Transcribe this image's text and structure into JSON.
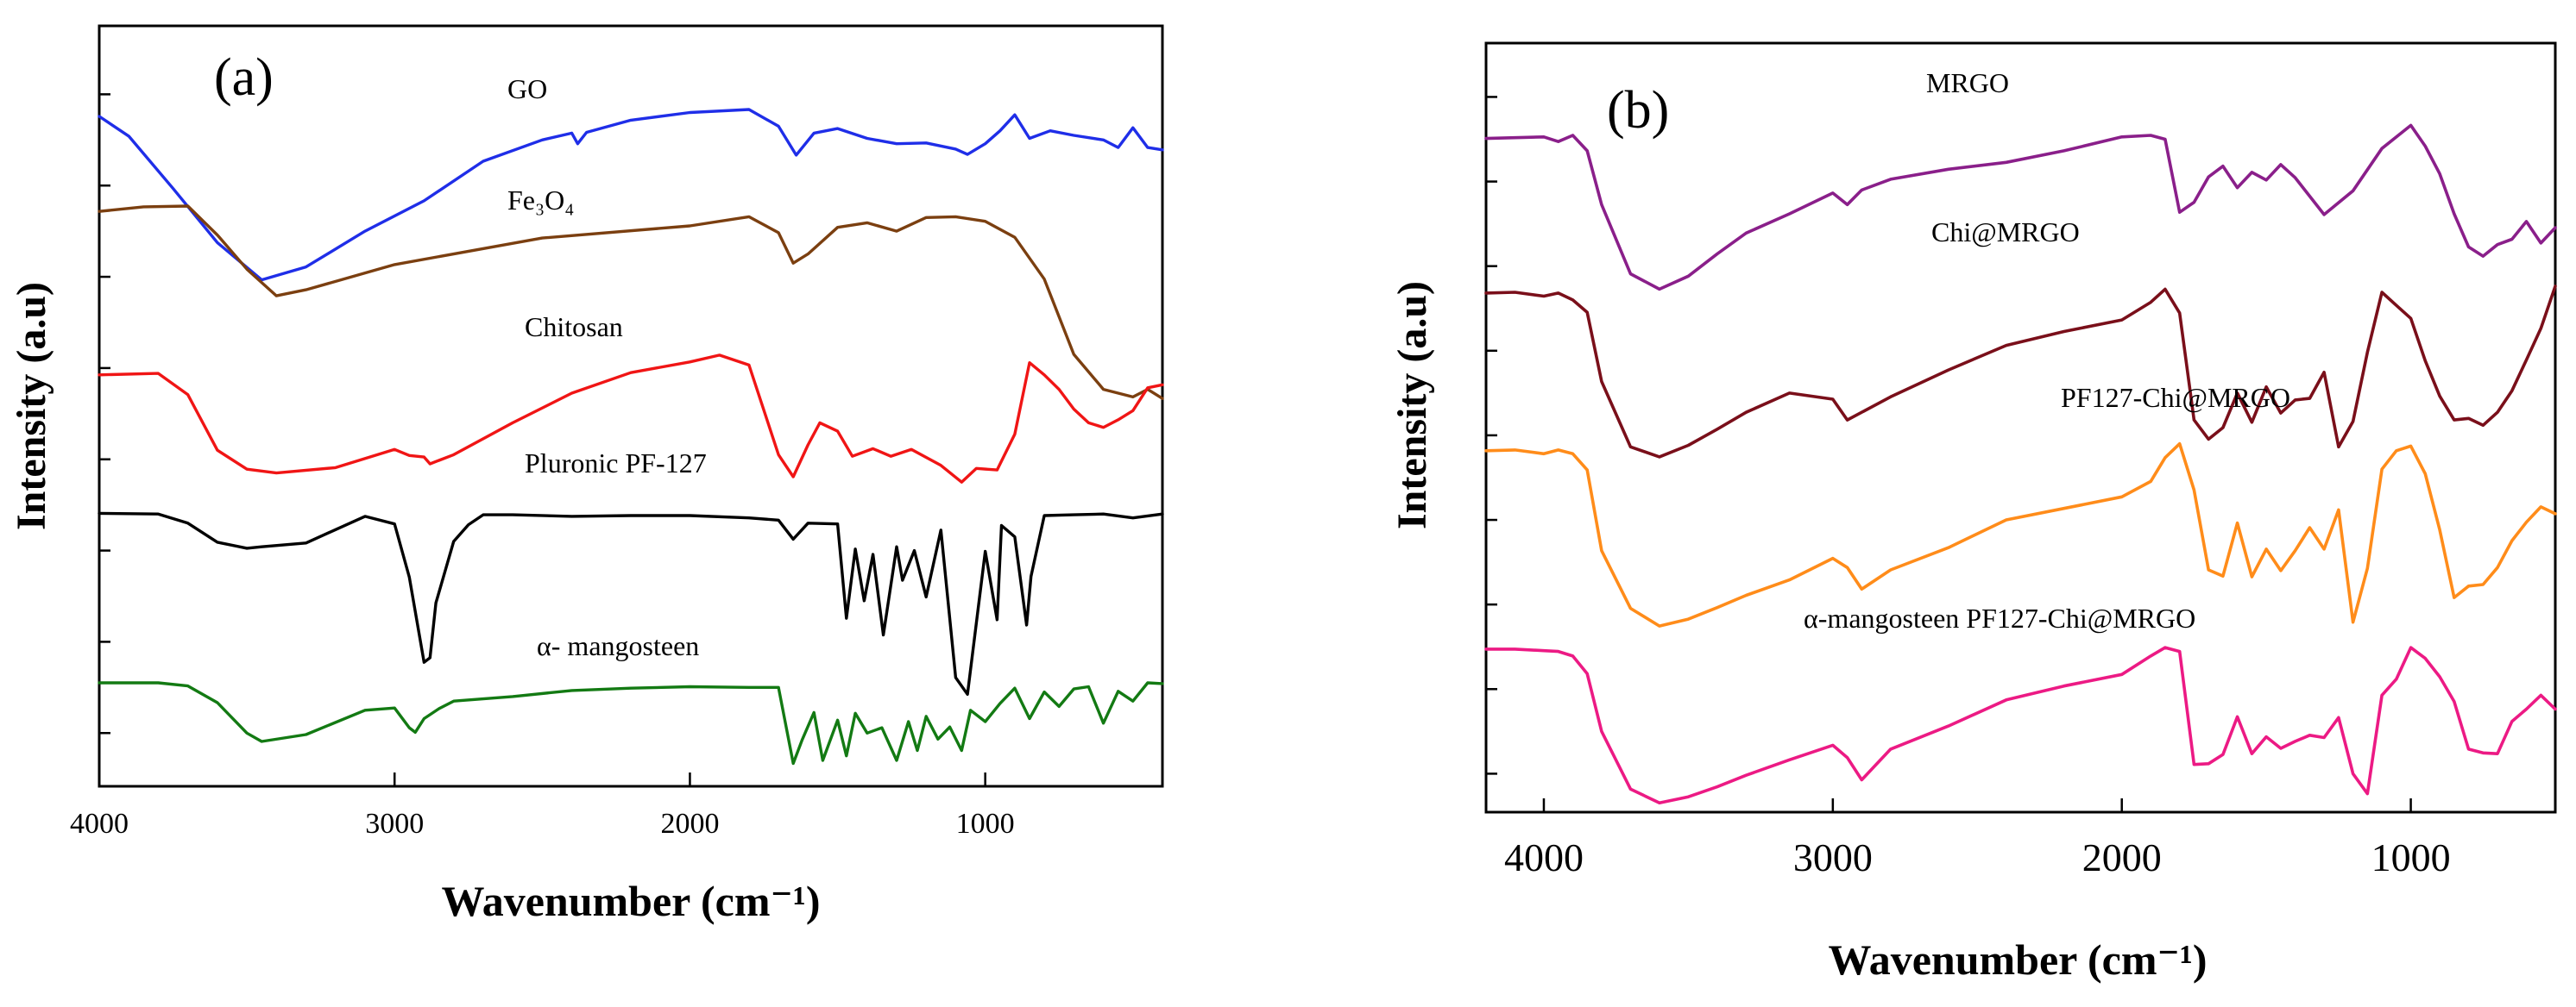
{
  "chart_data": [
    {
      "type": "line",
      "panel_label": "(a)",
      "xlabel": "Wavenumber (cm⁻¹)",
      "ylabel": "Intensity (a.u)",
      "xlim": [
        4000,
        400
      ],
      "x_ticks": [
        4000,
        3000,
        2000,
        1000
      ],
      "x_tick_labels": [
        "4000",
        "3000",
        "2000",
        "1000"
      ],
      "y_units": "normalized intensity (0 = bottom of frame, 1 = top), curves vertically offset",
      "series": [
        {
          "name": "GO",
          "color": "#1f2ee8",
          "x": [
            4000,
            3900,
            3750,
            3600,
            3450,
            3300,
            3100,
            2900,
            2700,
            2500,
            2400,
            2380,
            2350,
            2200,
            2000,
            1800,
            1700,
            1640,
            1580,
            1500,
            1400,
            1300,
            1200,
            1100,
            1060,
            1000,
            950,
            900,
            850,
            780,
            700,
            600,
            550,
            500,
            450,
            400
          ],
          "y": [
            0.881,
            0.855,
            0.786,
            0.715,
            0.666,
            0.683,
            0.73,
            0.77,
            0.822,
            0.85,
            0.859,
            0.845,
            0.86,
            0.876,
            0.886,
            0.89,
            0.868,
            0.83,
            0.859,
            0.865,
            0.852,
            0.845,
            0.846,
            0.838,
            0.831,
            0.845,
            0.862,
            0.883,
            0.852,
            0.862,
            0.856,
            0.85,
            0.84,
            0.866,
            0.84,
            0.837
          ]
        },
        {
          "name": "Fe₃O₄",
          "color": "#7b3f10",
          "x": [
            4000,
            3850,
            3700,
            3600,
            3500,
            3400,
            3300,
            3000,
            2500,
            2000,
            1800,
            1700,
            1650,
            1600,
            1500,
            1400,
            1300,
            1200,
            1100,
            1000,
            900,
            800,
            700,
            600,
            500,
            450,
            400
          ],
          "y": [
            0.756,
            0.762,
            0.763,
            0.725,
            0.68,
            0.645,
            0.653,
            0.686,
            0.721,
            0.737,
            0.749,
            0.728,
            0.688,
            0.7,
            0.735,
            0.741,
            0.73,
            0.748,
            0.749,
            0.743,
            0.722,
            0.667,
            0.568,
            0.522,
            0.512,
            0.522,
            0.51
          ]
        },
        {
          "name": "Chitosan",
          "color": "#f01515",
          "x": [
            4000,
            3800,
            3700,
            3600,
            3500,
            3400,
            3200,
            3000,
            2950,
            2900,
            2880,
            2800,
            2600,
            2400,
            2200,
            2000,
            1900,
            1800,
            1700,
            1650,
            1600,
            1560,
            1500,
            1450,
            1380,
            1320,
            1250,
            1150,
            1080,
            1030,
            960,
            900,
            850,
            800,
            750,
            700,
            650,
            600,
            550,
            500,
            450,
            400
          ],
          "y": [
            0.541,
            0.543,
            0.515,
            0.442,
            0.417,
            0.412,
            0.419,
            0.443,
            0.435,
            0.433,
            0.424,
            0.436,
            0.478,
            0.517,
            0.544,
            0.558,
            0.567,
            0.554,
            0.436,
            0.407,
            0.449,
            0.478,
            0.467,
            0.434,
            0.444,
            0.434,
            0.443,
            0.422,
            0.4,
            0.418,
            0.416,
            0.463,
            0.557,
            0.541,
            0.522,
            0.496,
            0.478,
            0.472,
            0.482,
            0.494,
            0.524,
            0.528
          ]
        },
        {
          "name": "Pluronic PF-127",
          "color": "#000000",
          "x": [
            4000,
            3800,
            3700,
            3600,
            3500,
            3450,
            3300,
            3100,
            3000,
            2950,
            2900,
            2880,
            2860,
            2800,
            2750,
            2700,
            2600,
            2400,
            2200,
            2000,
            1800,
            1700,
            1650,
            1600,
            1500,
            1470,
            1440,
            1410,
            1380,
            1345,
            1300,
            1280,
            1240,
            1200,
            1150,
            1100,
            1060,
            1000,
            960,
            945,
            900,
            860,
            845,
            800,
            700,
            600,
            500,
            400
          ],
          "y": [
            0.359,
            0.358,
            0.346,
            0.321,
            0.313,
            0.315,
            0.32,
            0.355,
            0.345,
            0.275,
            0.163,
            0.169,
            0.241,
            0.322,
            0.344,
            0.357,
            0.357,
            0.355,
            0.356,
            0.356,
            0.353,
            0.35,
            0.325,
            0.346,
            0.345,
            0.221,
            0.312,
            0.244,
            0.305,
            0.199,
            0.315,
            0.271,
            0.31,
            0.249,
            0.337,
            0.143,
            0.121,
            0.309,
            0.219,
            0.343,
            0.328,
            0.212,
            0.276,
            0.356,
            0.357,
            0.358,
            0.353,
            0.358
          ]
        },
        {
          "name": "α- mangosteen",
          "color": "#137a13",
          "x": [
            4000,
            3800,
            3700,
            3600,
            3500,
            3450,
            3300,
            3100,
            3000,
            2950,
            2930,
            2900,
            2850,
            2800,
            2600,
            2400,
            2200,
            2000,
            1800,
            1700,
            1650,
            1620,
            1580,
            1550,
            1500,
            1470,
            1440,
            1400,
            1350,
            1300,
            1260,
            1230,
            1200,
            1160,
            1120,
            1080,
            1050,
            1000,
            950,
            900,
            850,
            800,
            750,
            700,
            650,
            600,
            550,
            500,
            450,
            400
          ],
          "y": [
            0.136,
            0.136,
            0.132,
            0.11,
            0.07,
            0.059,
            0.068,
            0.1,
            0.103,
            0.077,
            0.071,
            0.089,
            0.102,
            0.112,
            0.118,
            0.126,
            0.129,
            0.131,
            0.13,
            0.13,
            0.03,
            0.061,
            0.097,
            0.034,
            0.087,
            0.04,
            0.096,
            0.07,
            0.077,
            0.034,
            0.085,
            0.047,
            0.092,
            0.062,
            0.078,
            0.047,
            0.1,
            0.085,
            0.109,
            0.129,
            0.089,
            0.124,
            0.105,
            0.128,
            0.131,
            0.083,
            0.125,
            0.112,
            0.136,
            0.135
          ]
        }
      ]
    },
    {
      "type": "line",
      "panel_label": "(b)",
      "xlabel": "Wavenumber (cm⁻¹)",
      "ylabel": "Intensity (a.u)",
      "xlim": [
        4200,
        500
      ],
      "x_ticks": [
        4000,
        3000,
        2000,
        1000
      ],
      "x_tick_labels": [
        "4000",
        "3000",
        "2000",
        "1000"
      ],
      "y_units": "normalized intensity (0 = bottom of frame, 1 = top), curves vertically offset",
      "series": [
        {
          "name": "MRGO",
          "color": "#8a1f8a",
          "x": [
            4200,
            4100,
            4000,
            3950,
            3900,
            3850,
            3800,
            3700,
            3600,
            3500,
            3400,
            3300,
            3150,
            3000,
            2950,
            2900,
            2800,
            2600,
            2400,
            2200,
            2000,
            1900,
            1850,
            1800,
            1750,
            1700,
            1650,
            1600,
            1550,
            1500,
            1450,
            1400,
            1300,
            1200,
            1100,
            1000,
            950,
            900,
            850,
            800,
            750,
            700,
            650,
            600,
            550,
            500
          ],
          "y": [
            0.876,
            0.877,
            0.878,
            0.872,
            0.88,
            0.86,
            0.79,
            0.7,
            0.68,
            0.697,
            0.726,
            0.753,
            0.778,
            0.805,
            0.79,
            0.809,
            0.823,
            0.836,
            0.845,
            0.86,
            0.878,
            0.88,
            0.875,
            0.78,
            0.793,
            0.826,
            0.84,
            0.812,
            0.832,
            0.822,
            0.842,
            0.825,
            0.777,
            0.808,
            0.863,
            0.893,
            0.866,
            0.83,
            0.778,
            0.735,
            0.723,
            0.738,
            0.745,
            0.768,
            0.74,
            0.76
          ]
        },
        {
          "name": "Chi@MRGO",
          "color": "#7a0f1a",
          "x": [
            4200,
            4100,
            4000,
            3950,
            3900,
            3850,
            3800,
            3700,
            3600,
            3500,
            3400,
            3300,
            3150,
            3000,
            2950,
            2900,
            2800,
            2600,
            2400,
            2200,
            2000,
            1900,
            1850,
            1800,
            1750,
            1700,
            1650,
            1600,
            1550,
            1500,
            1450,
            1400,
            1350,
            1300,
            1250,
            1200,
            1150,
            1100,
            1050,
            1000,
            950,
            900,
            850,
            800,
            750,
            700,
            650,
            600,
            550,
            500
          ],
          "y": [
            0.675,
            0.676,
            0.671,
            0.675,
            0.666,
            0.65,
            0.56,
            0.475,
            0.462,
            0.477,
            0.498,
            0.52,
            0.545,
            0.537,
            0.51,
            0.52,
            0.54,
            0.575,
            0.607,
            0.625,
            0.64,
            0.663,
            0.68,
            0.649,
            0.51,
            0.485,
            0.5,
            0.545,
            0.507,
            0.553,
            0.519,
            0.536,
            0.538,
            0.572,
            0.475,
            0.508,
            0.598,
            0.676,
            0.659,
            0.642,
            0.587,
            0.541,
            0.51,
            0.512,
            0.503,
            0.52,
            0.548,
            0.588,
            0.629,
            0.684
          ]
        },
        {
          "name": "PF127-Chi@MRGO",
          "color": "#ff8c1a",
          "x": [
            4200,
            4100,
            4000,
            3950,
            3900,
            3850,
            3800,
            3700,
            3600,
            3500,
            3400,
            3300,
            3150,
            3000,
            2950,
            2900,
            2800,
            2600,
            2400,
            2200,
            2000,
            1900,
            1850,
            1800,
            1750,
            1700,
            1650,
            1600,
            1550,
            1500,
            1450,
            1400,
            1350,
            1300,
            1250,
            1200,
            1150,
            1100,
            1050,
            1000,
            950,
            900,
            850,
            800,
            750,
            700,
            650,
            600,
            550,
            500
          ],
          "y": [
            0.47,
            0.471,
            0.466,
            0.471,
            0.466,
            0.445,
            0.34,
            0.265,
            0.242,
            0.251,
            0.266,
            0.282,
            0.302,
            0.33,
            0.318,
            0.29,
            0.315,
            0.344,
            0.38,
            0.395,
            0.41,
            0.43,
            0.461,
            0.479,
            0.419,
            0.315,
            0.307,
            0.376,
            0.306,
            0.342,
            0.314,
            0.34,
            0.37,
            0.342,
            0.393,
            0.247,
            0.317,
            0.446,
            0.47,
            0.476,
            0.44,
            0.367,
            0.279,
            0.294,
            0.296,
            0.318,
            0.353,
            0.377,
            0.397,
            0.388
          ]
        },
        {
          "name": "α-mangosteen PF127-Chi@MRGO",
          "color": "#ec1a84",
          "x": [
            4200,
            4100,
            4000,
            3950,
            3900,
            3850,
            3800,
            3700,
            3600,
            3500,
            3400,
            3300,
            3150,
            3000,
            2950,
            2900,
            2800,
            2600,
            2400,
            2200,
            2000,
            1900,
            1850,
            1800,
            1750,
            1700,
            1650,
            1600,
            1550,
            1500,
            1450,
            1400,
            1350,
            1300,
            1250,
            1200,
            1150,
            1100,
            1050,
            1000,
            950,
            900,
            850,
            800,
            750,
            700,
            650,
            600,
            550,
            500
          ],
          "y": [
            0.212,
            0.212,
            0.21,
            0.209,
            0.203,
            0.18,
            0.105,
            0.03,
            0.012,
            0.02,
            0.033,
            0.048,
            0.068,
            0.087,
            0.071,
            0.042,
            0.082,
            0.112,
            0.146,
            0.164,
            0.179,
            0.203,
            0.214,
            0.209,
            0.062,
            0.063,
            0.075,
            0.124,
            0.076,
            0.098,
            0.083,
            0.092,
            0.1,
            0.097,
            0.123,
            0.05,
            0.024,
            0.152,
            0.173,
            0.214,
            0.2,
            0.176,
            0.144,
            0.082,
            0.077,
            0.076,
            0.118,
            0.134,
            0.152,
            0.134
          ]
        }
      ]
    }
  ]
}
